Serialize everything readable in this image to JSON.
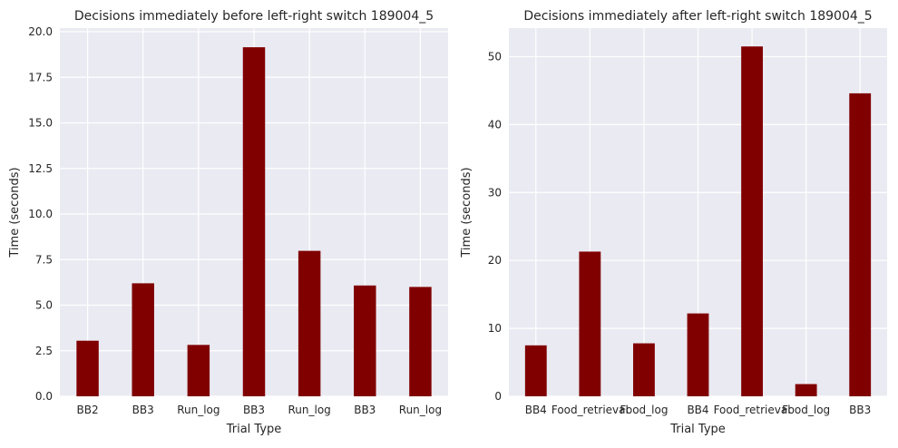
{
  "chart_data": [
    {
      "type": "bar",
      "title": "Decisions immediately before left-right switch 189004_5",
      "xlabel": "Trial Type",
      "ylabel": "Time (seconds)",
      "categories": [
        "BB2",
        "BB3",
        "Run_log",
        "BB3",
        "Run_log",
        "BB3",
        "Run_log"
      ],
      "values": [
        3.05,
        6.2,
        2.82,
        19.15,
        7.98,
        6.08,
        6.0
      ],
      "ylim": [
        0,
        20.2
      ],
      "yticks": [
        0.0,
        2.5,
        5.0,
        7.5,
        10.0,
        12.5,
        15.0,
        17.5,
        20.0
      ],
      "ytick_labels": [
        "0.0",
        "2.5",
        "5.0",
        "7.5",
        "10.0",
        "12.5",
        "15.0",
        "17.5",
        "20.0"
      ],
      "grid": true,
      "bar_color": "#800000",
      "background_color": "#eaeaf2"
    },
    {
      "type": "bar",
      "title": "Decisions immediately after left-right switch 189004_5",
      "xlabel": "Trial Type",
      "ylabel": "Time (seconds)",
      "categories": [
        "BB4",
        "Food_retrieval",
        "Food_log",
        "BB4",
        "Food_retrieval",
        "Food_log",
        "BB3"
      ],
      "values": [
        7.5,
        21.3,
        7.8,
        12.2,
        51.5,
        1.8,
        44.6
      ],
      "ylim": [
        0,
        54.2
      ],
      "yticks": [
        0,
        10,
        20,
        30,
        40,
        50
      ],
      "ytick_labels": [
        "0",
        "10",
        "20",
        "30",
        "40",
        "50"
      ],
      "grid": true,
      "bar_color": "#800000",
      "background_color": "#eaeaf2"
    }
  ]
}
